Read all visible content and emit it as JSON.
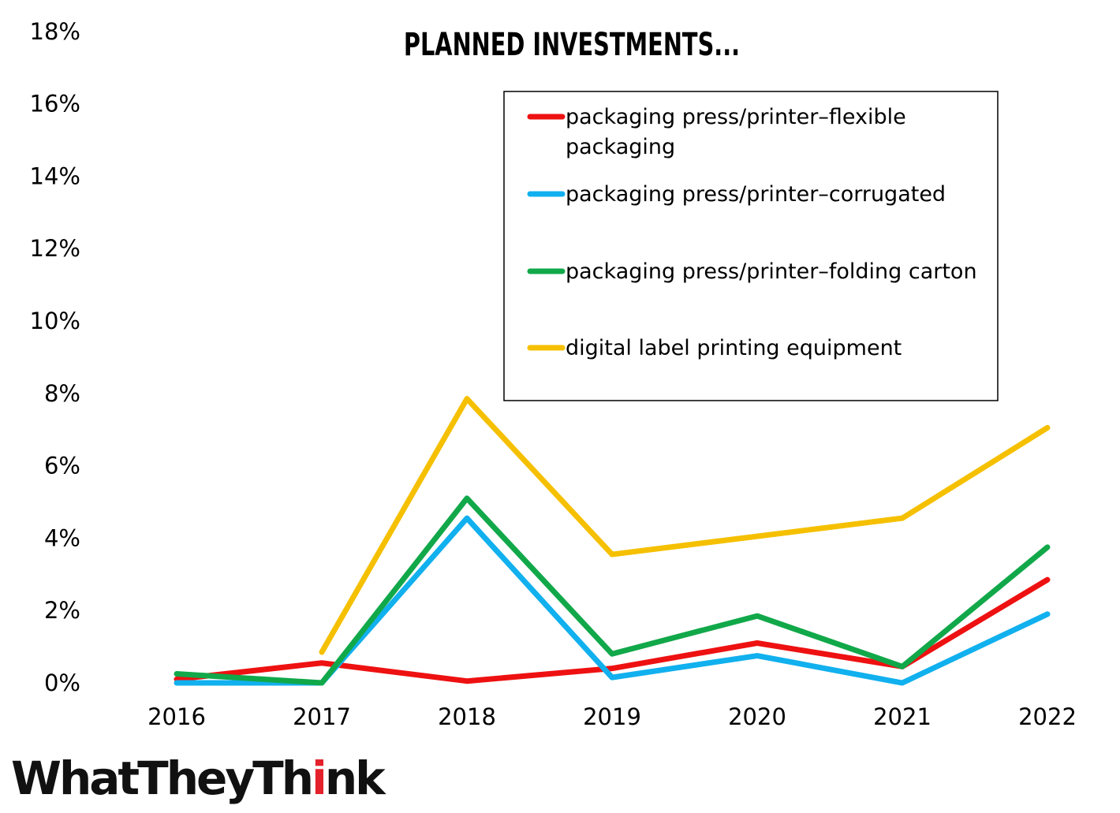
{
  "chart_data": {
    "type": "line",
    "title": "PLANNED INVESTMENTS...",
    "xlabel": "",
    "ylabel": "",
    "x": [
      "2016",
      "2017",
      "2018",
      "2019",
      "2020",
      "2021",
      "2022"
    ],
    "y_ticks": [
      "0%",
      "2%",
      "4%",
      "6%",
      "8%",
      "10%",
      "12%",
      "14%",
      "16%",
      "18%"
    ],
    "ylim": [
      0,
      18
    ],
    "grid": false,
    "legend_position": "top-right",
    "series": [
      {
        "name": "packaging press/printer–flexible packaging",
        "name_lines": [
          "packaging press/printer–flexible",
          "packaging"
        ],
        "color": "#ee1111",
        "values": [
          0.1,
          0.55,
          0.05,
          0.4,
          1.1,
          0.45,
          2.85
        ]
      },
      {
        "name": "packaging press/printer–corrugated",
        "name_lines": [
          "packaging press/printer–corrugated"
        ],
        "color": "#11b0ee",
        "values": [
          0.0,
          0.0,
          4.55,
          0.15,
          0.75,
          0.0,
          1.9
        ]
      },
      {
        "name": "packaging press/printer–folding carton",
        "name_lines": [
          "packaging press/printer–folding carton"
        ],
        "color": "#11a84a",
        "values": [
          0.25,
          0.0,
          5.1,
          0.8,
          1.85,
          0.45,
          3.75
        ]
      },
      {
        "name": "digital label printing equipment",
        "name_lines": [
          "digital label printing equipment"
        ],
        "color": "#f5c000",
        "values": [
          null,
          0.85,
          7.85,
          3.55,
          4.05,
          4.55,
          7.05
        ]
      }
    ]
  },
  "logo": {
    "text": "WhatTheyThink",
    "icon": "exclamation-i-icon",
    "accent_color": "#e3222b"
  }
}
